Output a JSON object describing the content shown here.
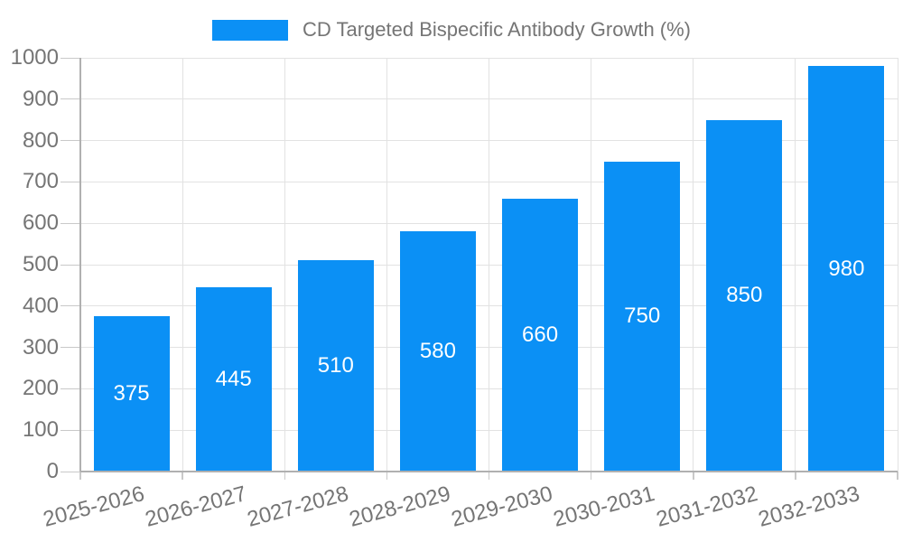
{
  "chart_data": {
    "type": "bar",
    "title": "CD Targeted Bispecific Antibody Growth (%)",
    "legend_position": "top-center",
    "categories": [
      "2025-2026",
      "2026-2027",
      "2027-2028",
      "2028-2029",
      "2029-2030",
      "2030-2031",
      "2031-2032",
      "2032-2033"
    ],
    "values": [
      375,
      445,
      510,
      580,
      660,
      750,
      850,
      980
    ],
    "xlabel": "",
    "ylabel": "",
    "ylim": [
      0,
      1000
    ],
    "ytick_step": 100,
    "grid": true,
    "x_tick_rotation_deg": -15,
    "value_label_position": "center",
    "bar_color": "#0b90f5",
    "value_label_color": "#ffffff"
  },
  "colors": {
    "background": "#ffffff",
    "axis": "#b0b0b0",
    "grid": "#e2e2e2",
    "tick": "#c9c9c9",
    "label_text": "#757575"
  }
}
